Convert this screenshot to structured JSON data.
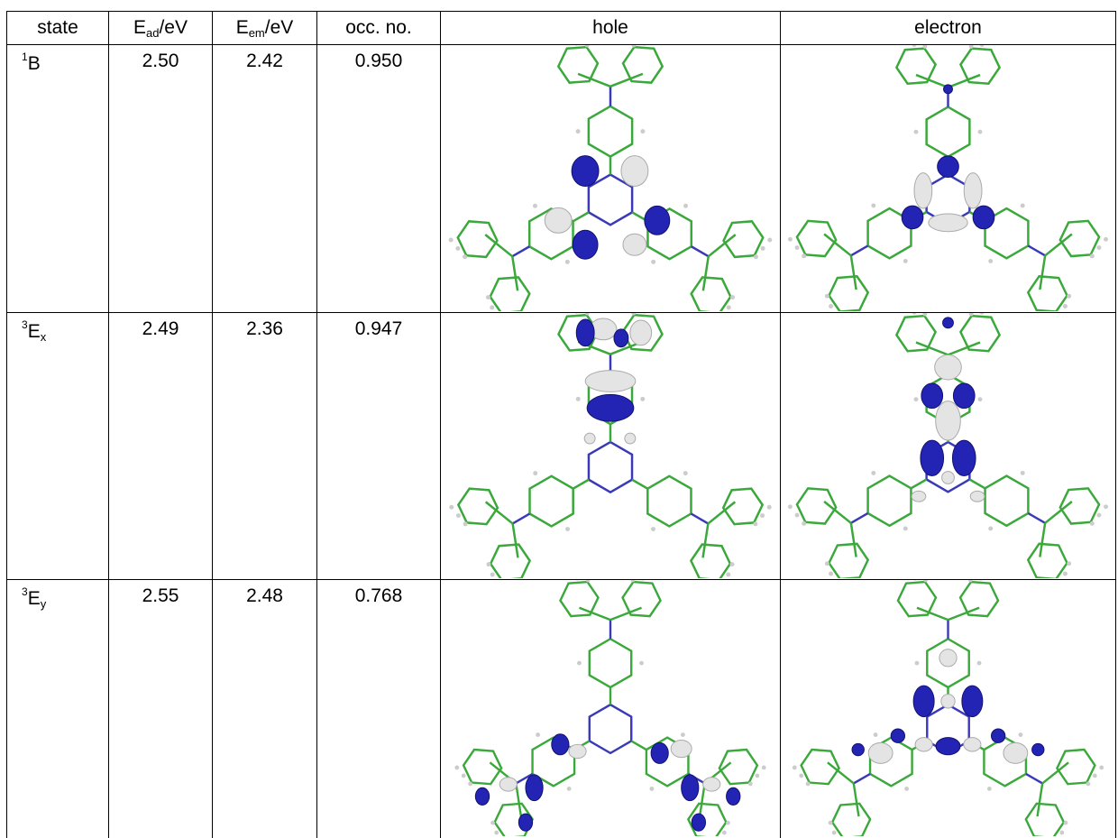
{
  "table": {
    "header": [
      "state",
      {
        "base": "E",
        "sub": "ad",
        "rest": "/eV"
      },
      {
        "base": "E",
        "sub": "em",
        "rest": "/eV"
      },
      "occ. no.",
      "hole",
      "electron"
    ],
    "rows": [
      {
        "state": {
          "sup": "1",
          "base": "B"
        },
        "values": [
          "2.50",
          "2.42",
          "0.950"
        ]
      },
      {
        "state": {
          "sup": "3",
          "base": "E",
          "sub": "x"
        },
        "values": [
          "2.49",
          "2.36",
          "0.947"
        ]
      },
      {
        "state": {
          "sup": "3",
          "base": "E",
          "sub": "y"
        },
        "values": [
          "2.55",
          "2.48",
          "0.768"
        ]
      }
    ]
  }
}
